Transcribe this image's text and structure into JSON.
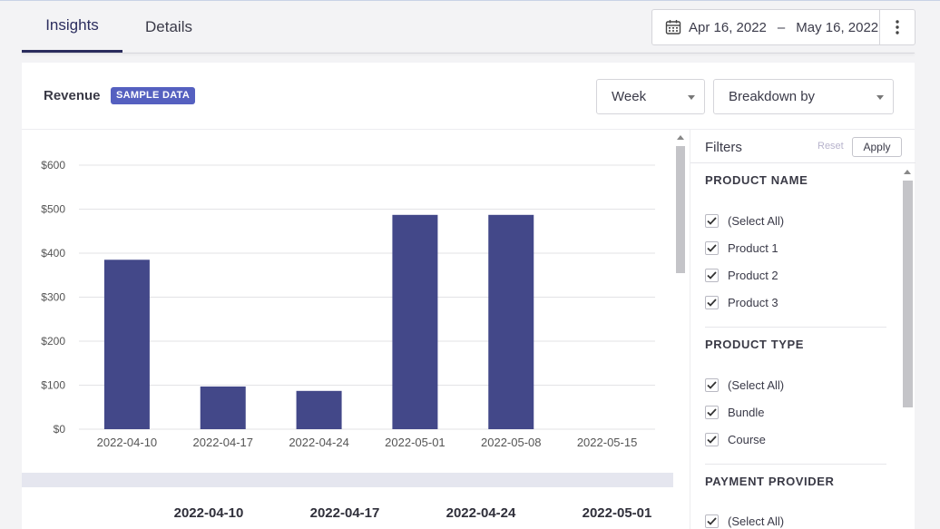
{
  "tabs": [
    {
      "label": "Insights",
      "active": true
    },
    {
      "label": "Details",
      "active": false
    }
  ],
  "date_range": {
    "start": "Apr 16, 2022",
    "separator": "–",
    "end": "May 16, 2022"
  },
  "card": {
    "title": "Revenue",
    "badge": "SAMPLE DATA",
    "period_select": "Week",
    "breakdown_select": "Breakdown by"
  },
  "chart_data": {
    "type": "bar",
    "categories": [
      "2022-04-10",
      "2022-04-17",
      "2022-04-24",
      "2022-05-01",
      "2022-05-08",
      "2022-05-15"
    ],
    "values": [
      385,
      97,
      87,
      487,
      487,
      0
    ],
    "ylim": [
      0,
      600
    ],
    "yticks": [
      0,
      100,
      200,
      300,
      400,
      500,
      600
    ],
    "ytick_labels": [
      "$0",
      "$100",
      "$200",
      "$300",
      "$400",
      "$500",
      "$600"
    ],
    "bar_color": "#434889",
    "grid": true
  },
  "table": {
    "columns": [
      "2022-04-10",
      "2022-04-17",
      "2022-04-24",
      "2022-05-01"
    ]
  },
  "filters": {
    "title": "Filters",
    "reset_label": "Reset",
    "apply_label": "Apply",
    "groups": [
      {
        "title": "PRODUCT NAME",
        "items": [
          {
            "label": "(Select All)",
            "checked": true
          },
          {
            "label": "Product 1",
            "checked": true
          },
          {
            "label": "Product 2",
            "checked": true
          },
          {
            "label": "Product 3",
            "checked": true
          }
        ]
      },
      {
        "title": "PRODUCT TYPE",
        "items": [
          {
            "label": "(Select All)",
            "checked": true
          },
          {
            "label": "Bundle",
            "checked": true
          },
          {
            "label": "Course",
            "checked": true
          }
        ]
      },
      {
        "title": "PAYMENT PROVIDER",
        "items": [
          {
            "label": "(Select All)",
            "checked": true
          }
        ]
      }
    ]
  }
}
